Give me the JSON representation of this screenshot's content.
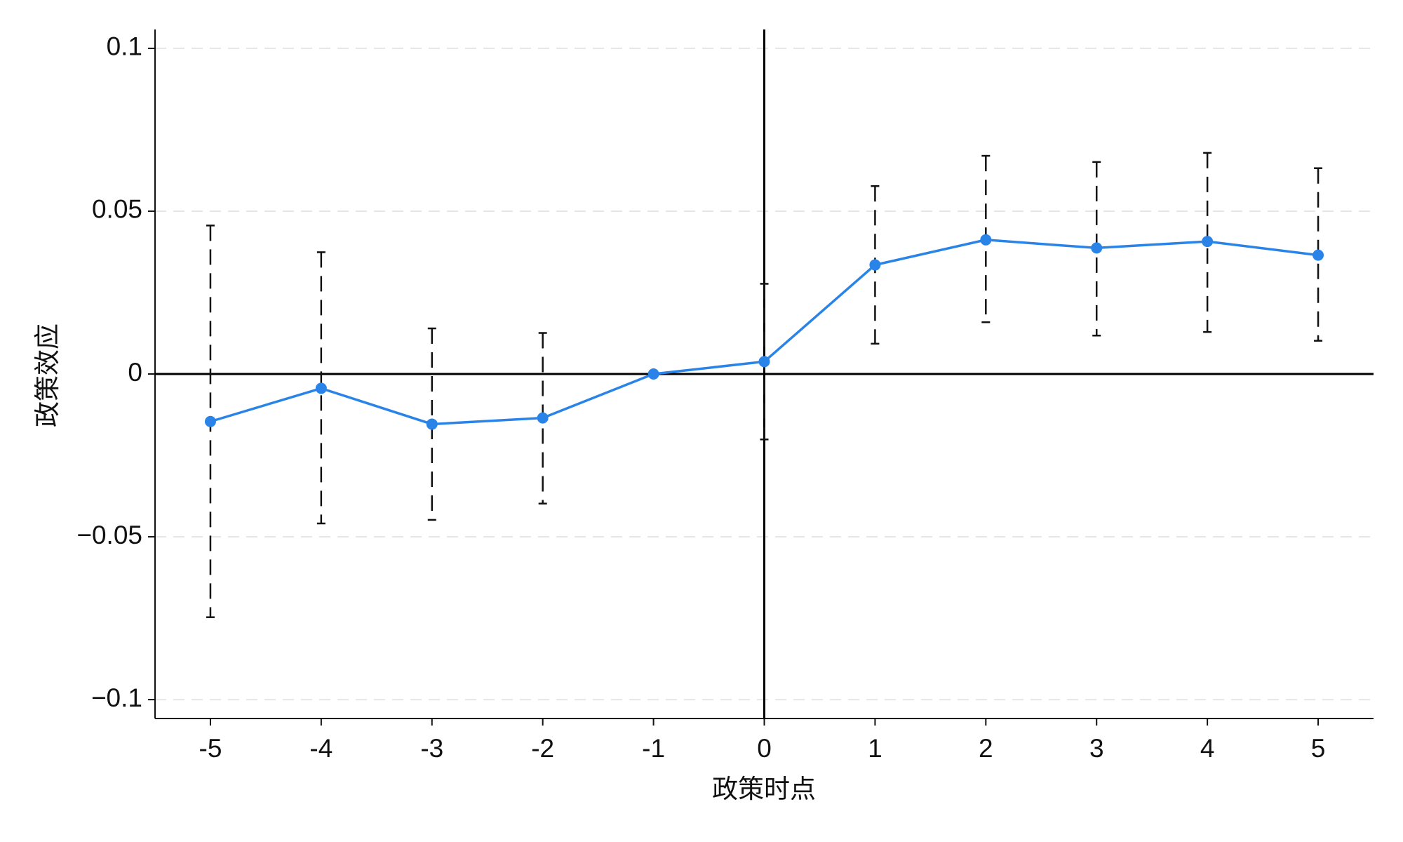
{
  "chart_data": {
    "type": "line",
    "x_label": "政策时点",
    "y_label": "政策效应",
    "x": [
      -5,
      -4,
      -3,
      -2,
      -1,
      0,
      1,
      2,
      3,
      4,
      5
    ],
    "values": [
      -0.0146,
      -0.0044,
      -0.0154,
      -0.0135,
      0,
      0.0038,
      0.0335,
      0.0412,
      0.0387,
      0.0407,
      0.0365
    ],
    "lower": [
      -0.0747,
      -0.0459,
      -0.0448,
      -0.0398,
      null,
      -0.0201,
      0.0093,
      0.0159,
      0.0118,
      0.0129,
      0.0102
    ],
    "upper": [
      0.0456,
      0.0374,
      0.014,
      0.0126,
      null,
      0.0277,
      0.0577,
      0.067,
      0.0651,
      0.0679,
      0.0632
    ],
    "color": "#2a84e8",
    "error_color": "#111111",
    "xlim": [
      -5.5,
      5.5
    ],
    "xticks": [
      -5,
      -4,
      -3,
      -2,
      -1,
      0,
      1,
      2,
      3,
      4,
      5
    ],
    "ylim": [
      -0.1058,
      0.1058
    ],
    "yticks": [
      {
        "value": -0.1,
        "label": "−0.1"
      },
      {
        "value": -0.05,
        "label": "−0.05"
      },
      0,
      0.05,
      0.1
    ],
    "grid": true,
    "reference_lines": {
      "x": 0,
      "y": 0
    }
  }
}
